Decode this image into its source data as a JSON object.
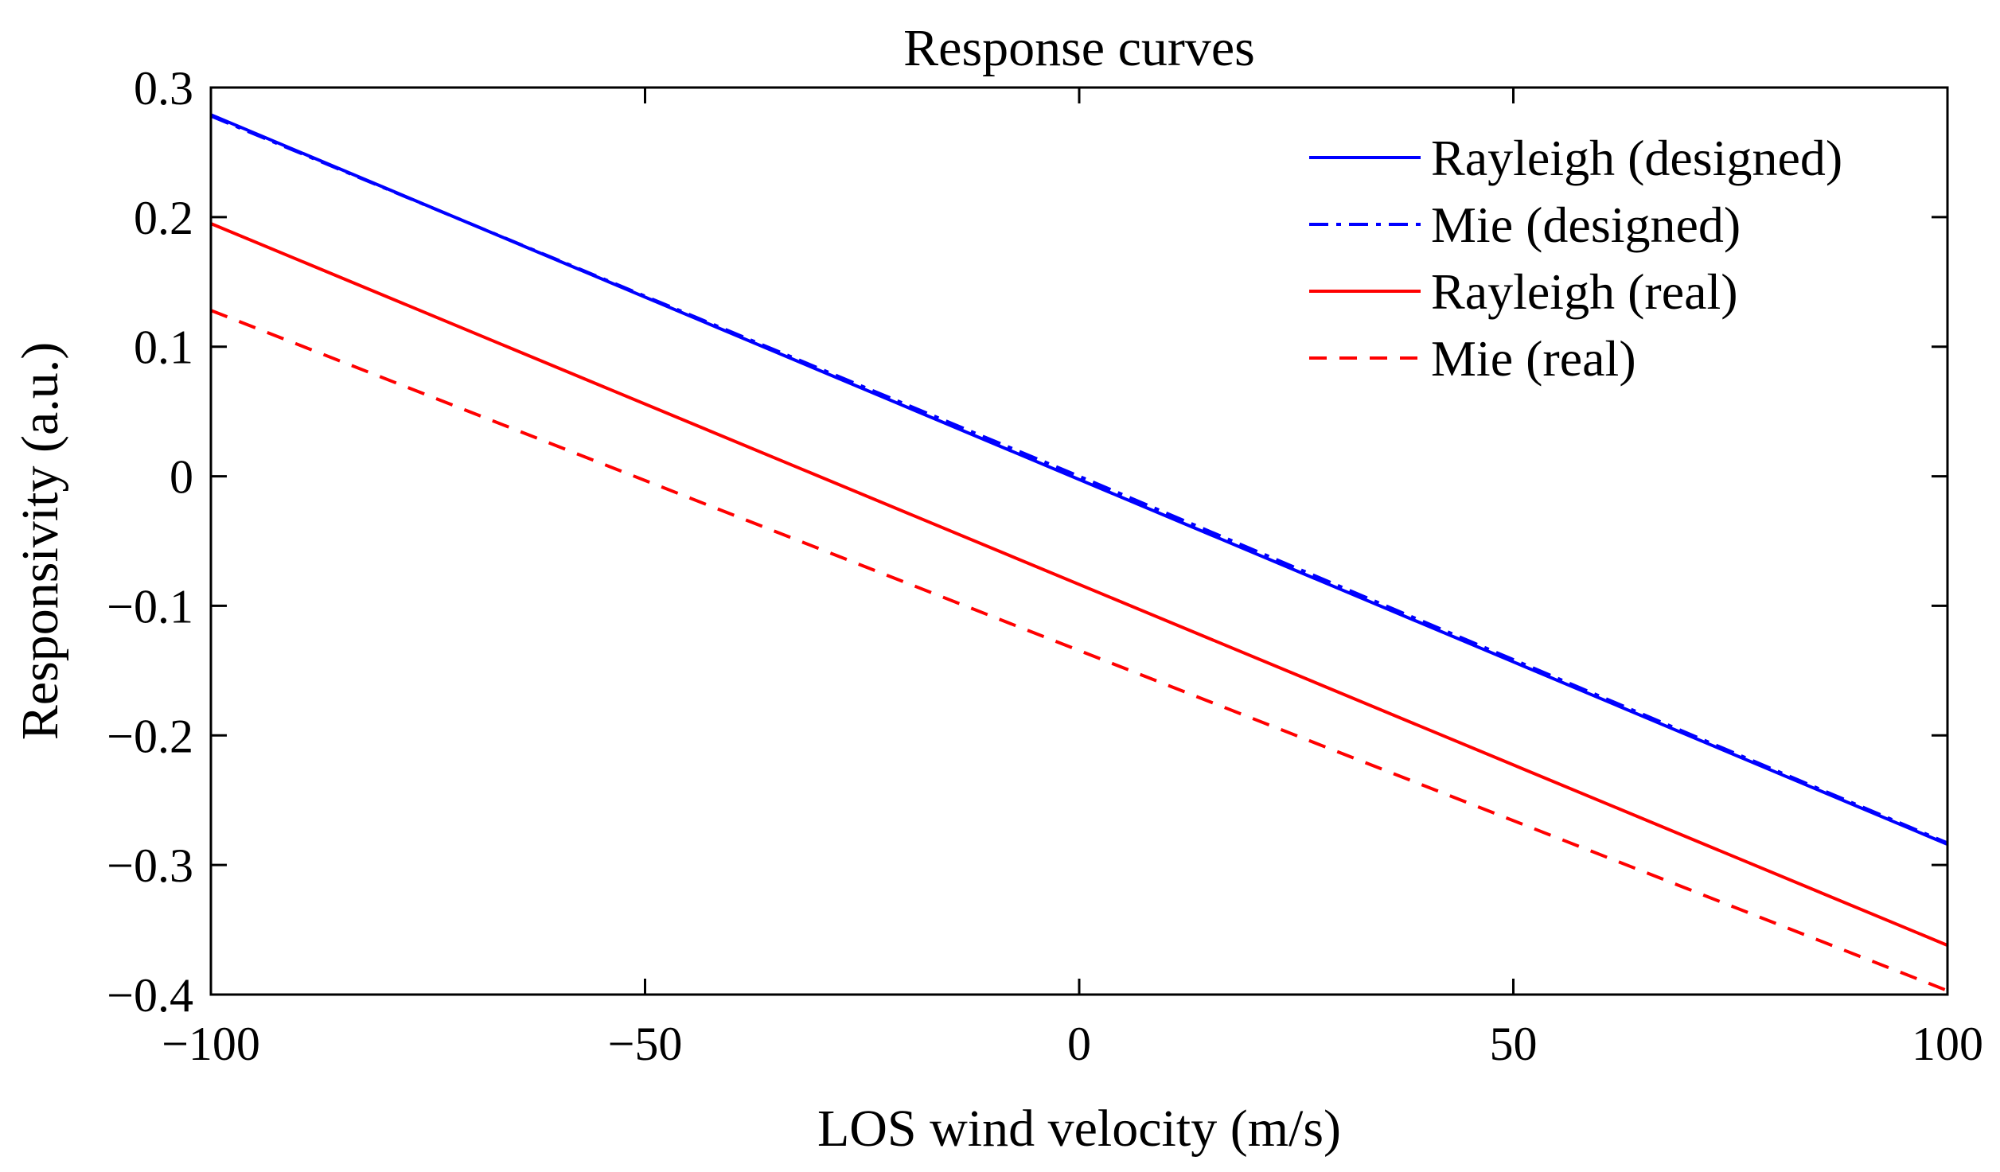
{
  "chart_data": {
    "type": "line",
    "title": "Response curves",
    "xlabel": "LOS wind velocity (m/s)",
    "ylabel": "Responsivity (a.u.)",
    "xlim": [
      -100,
      100
    ],
    "ylim": [
      -0.4,
      0.3
    ],
    "xticks": [
      -100,
      -50,
      0,
      50,
      100
    ],
    "xtick_labels": [
      "−100",
      "−50",
      "0",
      "50",
      "100"
    ],
    "yticks": [
      0.3,
      0.2,
      0.1,
      0,
      -0.1,
      -0.2,
      -0.3,
      -0.4
    ],
    "ytick_labels": [
      "0.3",
      "0.2",
      "0.1",
      "0",
      "−0.1",
      "−0.2",
      "−0.3",
      "−0.4"
    ],
    "grid": false,
    "legend_position": "top-right",
    "series": [
      {
        "name": "Rayleigh (designed)",
        "color": "#0000ff",
        "style": "solid",
        "x": [
          -100,
          100
        ],
        "y": [
          0.279,
          -0.284
        ]
      },
      {
        "name": "Mie (designed)",
        "color": "#0000ff",
        "style": "dash-dot",
        "x": [
          -100,
          0,
          100
        ],
        "y": [
          0.278,
          0,
          -0.283
        ]
      },
      {
        "name": "Rayleigh (real)",
        "color": "#ff0000",
        "style": "solid",
        "x": [
          -100,
          100
        ],
        "y": [
          0.195,
          -0.362
        ]
      },
      {
        "name": "Mie (real)",
        "color": "#ff0000",
        "style": "dashed",
        "x": [
          -100,
          100
        ],
        "y": [
          0.128,
          -0.397
        ]
      }
    ]
  }
}
